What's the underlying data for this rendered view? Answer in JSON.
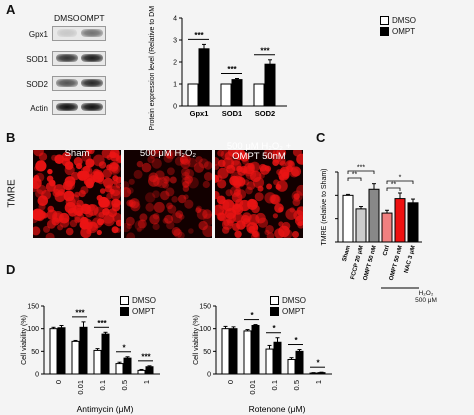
{
  "panelA": {
    "letter": "A",
    "blot_columns": [
      "DMSO",
      "OMPT"
    ],
    "blot_rows": [
      "Gpx1",
      "SOD1",
      "SOD2",
      "Actin"
    ],
    "chart_data": {
      "type": "bar",
      "ylabel": "Protein expression level (Relative to DMSO)",
      "ylim": [
        0,
        4
      ],
      "yticks": [
        0,
        1,
        2,
        3,
        4
      ],
      "categories": [
        "Gpx1",
        "SOD1",
        "SOD2"
      ],
      "series": [
        {
          "name": "DMSO",
          "values": [
            1.0,
            1.0,
            1.0
          ],
          "color": "#ffffff"
        },
        {
          "name": "OMPT",
          "values": [
            2.6,
            1.2,
            1.9
          ],
          "color": "#000000"
        }
      ],
      "errors": [
        [
          0,
          0,
          0
        ],
        [
          0.2,
          0.05,
          0.2
        ]
      ],
      "significance": [
        "***",
        "***",
        "***"
      ],
      "legend": "top-right"
    }
  },
  "panelB": {
    "letter": "B",
    "ylabel": "TMRE",
    "images": [
      "Sham",
      "500 μM H₂O₂",
      "500 μM H₂O₂ + OMPT 50nM"
    ]
  },
  "panelC": {
    "letter": "C",
    "chart_data": {
      "type": "bar",
      "ylabel": "TMRE (relative to Sham)",
      "ylim": [
        0,
        1.5
      ],
      "categories": [
        "Sham",
        "FCCP 20 μM",
        "OMPT 50 nM",
        "Ctrl",
        "OMPT 50 nM",
        "NAC 3 μM"
      ],
      "values": [
        1.0,
        0.71,
        1.13,
        0.62,
        0.93,
        0.84
      ],
      "errors": [
        0.02,
        0.05,
        0.12,
        0.06,
        0.12,
        0.08
      ],
      "colors": [
        "#ffffff",
        "#cccccc",
        "#888888",
        "#f08080",
        "#ee1111",
        "#000000"
      ],
      "significance": [
        "**",
        "***",
        "**",
        "*"
      ],
      "group_label": "H₂O₂",
      "group_sublabel": "500 μM"
    }
  },
  "panelD": {
    "letter": "D",
    "charts": [
      {
        "type": "bar",
        "xlabel": "Antimycin (μM)",
        "ylabel": "Cell viability (%)",
        "ylim": [
          0,
          150
        ],
        "yticks": [
          0,
          50,
          100,
          150
        ],
        "categories": [
          "0",
          "0.01",
          "0.1",
          "0.5",
          "1"
        ],
        "series": [
          {
            "name": "DMSO",
            "values": [
              100,
              72,
              52,
              23,
              8
            ],
            "color": "#ffffff"
          },
          {
            "name": "OMPT",
            "values": [
              102,
              103,
              88,
              35,
              16
            ],
            "color": "#000000"
          }
        ],
        "errors": [
          [
            3,
            2,
            4,
            3,
            2
          ],
          [
            5,
            12,
            4,
            3,
            2
          ]
        ],
        "significance": [
          "",
          "***",
          "***",
          "*",
          "***"
        ],
        "legend": "top-right"
      },
      {
        "type": "bar",
        "xlabel": "Rotenone (μM)",
        "ylabel": "Cell viability (%)",
        "ylim": [
          0,
          150
        ],
        "yticks": [
          0,
          50,
          100,
          150
        ],
        "categories": [
          "0",
          "0.01",
          "0.1",
          "0.5",
          "1"
        ],
        "series": [
          {
            "name": "DMSO",
            "values": [
              100,
              95,
              55,
              32,
              2
            ],
            "color": "#ffffff"
          },
          {
            "name": "OMPT",
            "values": [
              100,
              107,
              70,
              50,
              3
            ],
            "color": "#000000"
          }
        ],
        "errors": [
          [
            5,
            3,
            8,
            4,
            1
          ],
          [
            4,
            2,
            10,
            4,
            1
          ]
        ],
        "significance": [
          "",
          "*",
          "*",
          "*",
          "*"
        ],
        "legend": "top-right"
      }
    ]
  }
}
